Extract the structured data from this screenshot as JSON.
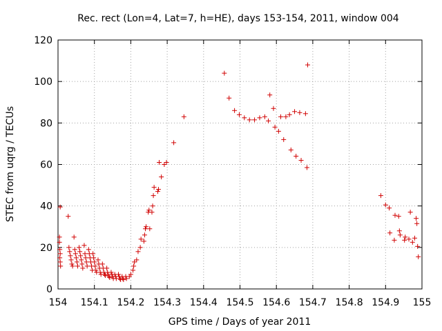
{
  "chart_data": {
    "type": "scatter",
    "title": "Rec. rect (Lon=4, Lat=7, h=HE), days 153-154, 2011, window 004",
    "xlabel": "GPS time / Days of year 2011",
    "ylabel": "STEC from uqrg / TECUs",
    "xlim": [
      154,
      155
    ],
    "ylim": [
      0,
      120
    ],
    "xticks": [
      154,
      154.1,
      154.2,
      154.3,
      154.4,
      154.5,
      154.6,
      154.7,
      154.8,
      154.9,
      155
    ],
    "xtick_labels": [
      "154",
      "154.1",
      "154.2",
      "154.3",
      "154.4",
      "154.5",
      "154.6",
      "154.7",
      "154.8",
      "154.9",
      "155"
    ],
    "yticks": [
      0,
      20,
      40,
      60,
      80,
      100,
      120
    ],
    "ytick_labels": [
      "0",
      "20",
      "40",
      "60",
      "80",
      "100",
      "120"
    ],
    "grid": true,
    "marker": "plus",
    "color": "#d00000",
    "points": [
      [
        154.006,
        39.5
      ],
      [
        154.004,
        25
      ],
      [
        154.004,
        22.5
      ],
      [
        154.005,
        19
      ],
      [
        154.006,
        17
      ],
      [
        154.005,
        15
      ],
      [
        154.006,
        13
      ],
      [
        154.007,
        11
      ],
      [
        154.028,
        35
      ],
      [
        154.03,
        20
      ],
      [
        154.032,
        18
      ],
      [
        154.034,
        16
      ],
      [
        154.036,
        14
      ],
      [
        154.038,
        12
      ],
      [
        154.04,
        11
      ],
      [
        154.044,
        25
      ],
      [
        154.046,
        19
      ],
      [
        154.048,
        17
      ],
      [
        154.05,
        15
      ],
      [
        154.052,
        13
      ],
      [
        154.054,
        11
      ],
      [
        154.058,
        20
      ],
      [
        154.06,
        18
      ],
      [
        154.062,
        16
      ],
      [
        154.064,
        14
      ],
      [
        154.066,
        12
      ],
      [
        154.068,
        10
      ],
      [
        154.072,
        21
      ],
      [
        154.074,
        17
      ],
      [
        154.076,
        15
      ],
      [
        154.078,
        13
      ],
      [
        154.08,
        11
      ],
      [
        154.084,
        19
      ],
      [
        154.086,
        17
      ],
      [
        154.088,
        15
      ],
      [
        154.09,
        13
      ],
      [
        154.092,
        11
      ],
      [
        154.094,
        9
      ],
      [
        154.096,
        17
      ],
      [
        154.098,
        15
      ],
      [
        154.1,
        13
      ],
      [
        154.102,
        11
      ],
      [
        154.104,
        9
      ],
      [
        154.106,
        8
      ],
      [
        154.11,
        14
      ],
      [
        154.112,
        12
      ],
      [
        154.114,
        10
      ],
      [
        154.116,
        8
      ],
      [
        154.118,
        7
      ],
      [
        154.122,
        12
      ],
      [
        154.124,
        10
      ],
      [
        154.126,
        8
      ],
      [
        154.128,
        7
      ],
      [
        154.13,
        6.5
      ],
      [
        154.134,
        10
      ],
      [
        154.136,
        8
      ],
      [
        154.138,
        7
      ],
      [
        154.14,
        6
      ],
      [
        154.142,
        5.5
      ],
      [
        154.146,
        8
      ],
      [
        154.148,
        7
      ],
      [
        154.15,
        6
      ],
      [
        154.152,
        5
      ],
      [
        154.156,
        7
      ],
      [
        154.158,
        6
      ],
      [
        154.16,
        5
      ],
      [
        154.166,
        7
      ],
      [
        154.168,
        6
      ],
      [
        154.17,
        5
      ],
      [
        154.172,
        4.5
      ],
      [
        154.176,
        6
      ],
      [
        154.178,
        5
      ],
      [
        154.18,
        4.5
      ],
      [
        154.186,
        6
      ],
      [
        154.188,
        5
      ],
      [
        154.196,
        6
      ],
      [
        154.2,
        7
      ],
      [
        154.206,
        9
      ],
      [
        154.208,
        11
      ],
      [
        154.21,
        13
      ],
      [
        154.216,
        14
      ],
      [
        154.22,
        18
      ],
      [
        154.226,
        20
      ],
      [
        154.228,
        24
      ],
      [
        154.236,
        23
      ],
      [
        154.238,
        26
      ],
      [
        154.24,
        29
      ],
      [
        154.242,
        30
      ],
      [
        154.248,
        37
      ],
      [
        154.25,
        38
      ],
      [
        154.252,
        29
      ],
      [
        154.258,
        37
      ],
      [
        154.26,
        40
      ],
      [
        154.262,
        45
      ],
      [
        154.264,
        49
      ],
      [
        154.274,
        47
      ],
      [
        154.276,
        48
      ],
      [
        154.278,
        61
      ],
      [
        154.284,
        54
      ],
      [
        154.292,
        60
      ],
      [
        154.298,
        61
      ],
      [
        154.318,
        70.5
      ],
      [
        154.346,
        83
      ],
      [
        154.457,
        104
      ],
      [
        154.47,
        92
      ],
      [
        154.485,
        86
      ],
      [
        154.498,
        84
      ],
      [
        154.512,
        82.5
      ],
      [
        154.526,
        81.5
      ],
      [
        154.54,
        81.5
      ],
      [
        154.554,
        82.5
      ],
      [
        154.568,
        83
      ],
      [
        154.578,
        81
      ],
      [
        154.582,
        93.5
      ],
      [
        154.592,
        87
      ],
      [
        154.596,
        78
      ],
      [
        154.606,
        76
      ],
      [
        154.612,
        83
      ],
      [
        154.62,
        72
      ],
      [
        154.626,
        83
      ],
      [
        154.636,
        84
      ],
      [
        154.64,
        67
      ],
      [
        154.65,
        85.5
      ],
      [
        154.654,
        64
      ],
      [
        154.664,
        85
      ],
      [
        154.668,
        62
      ],
      [
        154.68,
        84.5
      ],
      [
        154.684,
        58.5
      ],
      [
        154.686,
        108
      ],
      [
        154.887,
        45
      ],
      [
        154.9,
        40.5
      ],
      [
        154.91,
        39
      ],
      [
        154.912,
        27
      ],
      [
        154.924,
        23.5
      ],
      [
        154.926,
        35.5
      ],
      [
        154.936,
        35
      ],
      [
        154.938,
        28
      ],
      [
        154.94,
        26
      ],
      [
        154.952,
        23.5
      ],
      [
        154.954,
        25
      ],
      [
        154.964,
        24
      ],
      [
        154.968,
        37
      ],
      [
        154.974,
        22.5
      ],
      [
        154.98,
        24.5
      ],
      [
        154.984,
        34
      ],
      [
        154.986,
        31.5
      ],
      [
        154.988,
        20.5
      ],
      [
        154.99,
        15.5
      ]
    ]
  }
}
